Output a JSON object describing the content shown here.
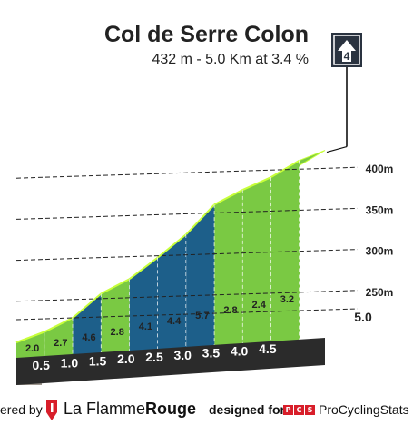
{
  "header": {
    "title": "Col de Serre Colon",
    "subtitle": "432 m - 5.0 Km at 3.4 %"
  },
  "category_badge": {
    "label": "4",
    "icon": "mountain-category-icon"
  },
  "chart_data": {
    "type": "area",
    "title": "Col de Serre Colon",
    "subtitle": "432 m - 5.0 Km at 3.4 %",
    "x_unit": "km",
    "y_unit": "m",
    "xlim": [
      0,
      5.0
    ],
    "ylim": [
      200,
      432
    ],
    "y_ticks": [
      250,
      300,
      350,
      400
    ],
    "y_tick_labels": [
      "250m",
      "300m",
      "350m",
      "400m"
    ],
    "km_marks": [
      {
        "km": 0.5,
        "label": "0.5"
      },
      {
        "km": 1.0,
        "label": "1.0"
      },
      {
        "km": 1.5,
        "label": "1.5"
      },
      {
        "km": 2.0,
        "label": "2.0"
      },
      {
        "km": 2.5,
        "label": "2.5"
      },
      {
        "km": 3.0,
        "label": "3.0"
      },
      {
        "km": 3.5,
        "label": "3.5"
      },
      {
        "km": 4.0,
        "label": "4.0"
      },
      {
        "km": 4.5,
        "label": "4.5"
      },
      {
        "km": 5.0,
        "label": "5.0"
      }
    ],
    "segments": [
      {
        "from_km": 0.0,
        "to_km": 0.5,
        "gradient": 2.0,
        "label": "2.0"
      },
      {
        "from_km": 0.5,
        "to_km": 1.0,
        "gradient": 2.7,
        "label": "2.7"
      },
      {
        "from_km": 1.0,
        "to_km": 1.5,
        "gradient": 4.6,
        "label": "4.6"
      },
      {
        "from_km": 1.5,
        "to_km": 2.0,
        "gradient": 2.8,
        "label": "2.8"
      },
      {
        "from_km": 2.0,
        "to_km": 2.5,
        "gradient": 4.1,
        "label": "4.1"
      },
      {
        "from_km": 2.5,
        "to_km": 3.0,
        "gradient": 4.4,
        "label": "4.4"
      },
      {
        "from_km": 3.0,
        "to_km": 3.5,
        "gradient": 5.7,
        "label": "5.7"
      },
      {
        "from_km": 3.5,
        "to_km": 4.0,
        "gradient": 2.8,
        "label": "2.8"
      },
      {
        "from_km": 4.0,
        "to_km": 4.5,
        "gradient": 2.4,
        "label": "2.4"
      },
      {
        "from_km": 4.5,
        "to_km": 5.0,
        "gradient": 3.2,
        "label": "3.2"
      }
    ],
    "gradient_colors": {
      "easy": "#7ac943",
      "medium": "#1d5f8a",
      "edge": "#c8ff3a",
      "base": "#2b2b2b",
      "start_block": "#9e978f"
    }
  },
  "footer": {
    "powered_by": "ered by",
    "brand_regular": "La Flamme",
    "brand_bold": "Rouge",
    "designed_for": "designed for",
    "pcs_badge": [
      "P",
      "C",
      "S"
    ],
    "pcs_name": "ProCyclingStats",
    "brand_color": "#d81e2a"
  }
}
